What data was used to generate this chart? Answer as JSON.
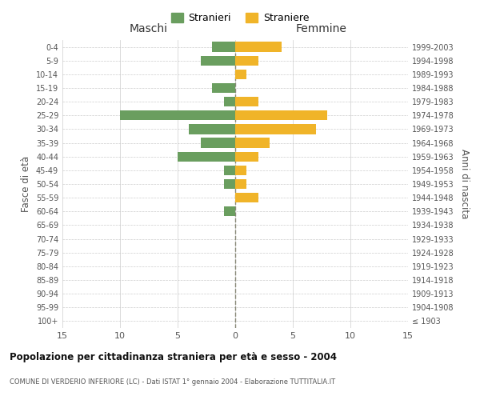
{
  "age_groups": [
    "100+",
    "95-99",
    "90-94",
    "85-89",
    "80-84",
    "75-79",
    "70-74",
    "65-69",
    "60-64",
    "55-59",
    "50-54",
    "45-49",
    "40-44",
    "35-39",
    "30-34",
    "25-29",
    "20-24",
    "15-19",
    "10-14",
    "5-9",
    "0-4"
  ],
  "birth_years": [
    "≤ 1903",
    "1904-1908",
    "1909-1913",
    "1914-1918",
    "1919-1923",
    "1924-1928",
    "1929-1933",
    "1934-1938",
    "1939-1943",
    "1944-1948",
    "1949-1953",
    "1954-1958",
    "1959-1963",
    "1964-1968",
    "1969-1973",
    "1974-1978",
    "1979-1983",
    "1984-1988",
    "1989-1993",
    "1994-1998",
    "1999-2003"
  ],
  "males": [
    0,
    0,
    0,
    0,
    0,
    0,
    0,
    0,
    1,
    0,
    1,
    1,
    5,
    3,
    4,
    10,
    1,
    2,
    0,
    3,
    2
  ],
  "females": [
    0,
    0,
    0,
    0,
    0,
    0,
    0,
    0,
    0,
    2,
    1,
    1,
    2,
    3,
    7,
    8,
    2,
    0,
    1,
    2,
    4
  ],
  "male_color": "#6a9e5f",
  "female_color": "#f0b429",
  "title": "Popolazione per cittadinanza straniera per età e sesso - 2004",
  "subtitle": "COMUNE DI VERDERIO INFERIORE (LC) - Dati ISTAT 1° gennaio 2004 - Elaborazione TUTTITALIA.IT",
  "ylabel_left": "Fasce di età",
  "ylabel_right": "Anni di nascita",
  "xlabel_left": "Maschi",
  "xlabel_right": "Femmine",
  "legend_male": "Stranieri",
  "legend_female": "Straniere",
  "xlim": 15,
  "background_color": "#ffffff",
  "grid_color": "#cccccc"
}
